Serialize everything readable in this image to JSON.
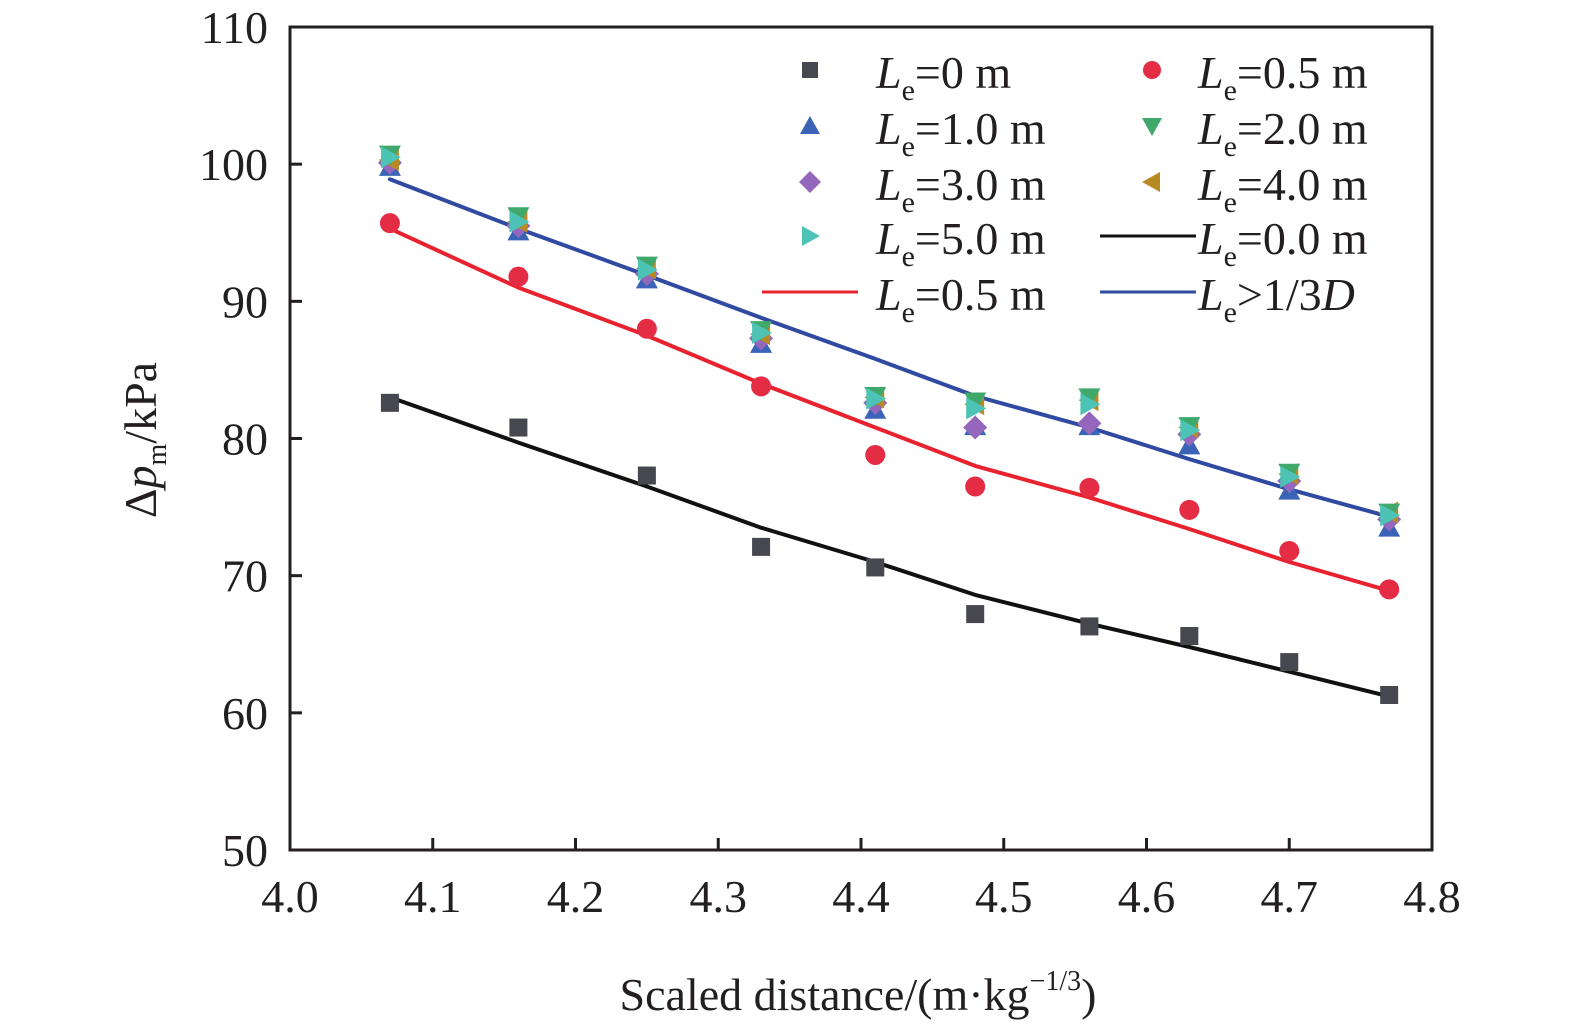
{
  "chart_data": {
    "type": "scatter",
    "title": "",
    "xlabel": "Scaled distance/(m·kg",
    "xlabel_sup": "−1/3",
    "xlabel_close": ")",
    "ylabel_delta": "Δ",
    "ylabel_var": "p",
    "ylabel_sub": "m",
    "ylabel_unit": "/kPa",
    "xlim": [
      4.0,
      4.8
    ],
    "ylim": [
      50,
      110
    ],
    "xticks": [
      "4.0",
      "4.1",
      "4.2",
      "4.3",
      "4.4",
      "4.5",
      "4.6",
      "4.7",
      "4.8"
    ],
    "yticks": [
      "50",
      "60",
      "70",
      "80",
      "90",
      "100",
      "110"
    ],
    "grid": false,
    "legend_position": "top-right",
    "x": [
      4.07,
      4.16,
      4.25,
      4.33,
      4.41,
      4.48,
      4.56,
      4.63,
      4.7,
      4.77
    ],
    "series": [
      {
        "name": "Le=0 m",
        "label_var": "L",
        "label_sub": "e",
        "label_rest": "=0 m",
        "kind": "marker",
        "marker": "square",
        "color": "#46474f",
        "values": [
          82.6,
          80.8,
          77.3,
          72.1,
          70.6,
          67.2,
          66.3,
          65.6,
          63.7,
          61.3
        ]
      },
      {
        "name": "Le=0.5 m",
        "label_var": "L",
        "label_sub": "e",
        "label_rest": "=0.5 m",
        "kind": "marker",
        "marker": "circle",
        "color": "#e42c45",
        "values": [
          95.7,
          91.8,
          88.0,
          83.8,
          78.8,
          76.5,
          76.4,
          74.8,
          71.8,
          69.0
        ]
      },
      {
        "name": "Le=1.0 m",
        "label_var": "L",
        "label_sub": "e",
        "label_rest": "=1.0 m",
        "kind": "marker",
        "marker": "triangle-up",
        "color": "#3b64b8",
        "values": [
          99.8,
          95.1,
          91.6,
          86.9,
          82.1,
          80.9,
          80.9,
          79.5,
          76.2,
          73.5
        ]
      },
      {
        "name": "Le=2.0 m",
        "label_var": "L",
        "label_sub": "e",
        "label_rest": "=2.0 m",
        "kind": "marker",
        "marker": "triangle-down",
        "color": "#3fa86a",
        "values": [
          100.7,
          96.2,
          92.6,
          87.9,
          83.1,
          82.7,
          83.0,
          80.9,
          77.5,
          74.6
        ]
      },
      {
        "name": "Le=3.0 m",
        "label_var": "L",
        "label_sub": "e",
        "label_rest": "=3.0 m",
        "kind": "marker",
        "marker": "diamond",
        "color": "#9467bd",
        "values": [
          100.1,
          95.5,
          92.0,
          87.3,
          82.6,
          80.8,
          81.1,
          80.3,
          76.9,
          74.1
        ]
      },
      {
        "name": "Le=4.0 m",
        "label_var": "L",
        "label_sub": "e",
        "label_rest": "=4.0 m",
        "kind": "marker",
        "marker": "triangle-left",
        "color": "#b88a24",
        "values": [
          100.3,
          95.8,
          92.4,
          87.6,
          83.0,
          82.5,
          82.8,
          80.8,
          77.4,
          74.6
        ]
      },
      {
        "name": "Le=5.0 m",
        "label_var": "L",
        "label_sub": "e",
        "label_rest": "=5.0 m",
        "kind": "marker",
        "marker": "triangle-right",
        "color": "#4dc3b5",
        "values": [
          100.5,
          95.8,
          92.3,
          87.7,
          82.9,
          82.2,
          82.5,
          80.6,
          77.2,
          74.4
        ]
      },
      {
        "name": "Le=0.0 m (fit)",
        "label_var": "L",
        "label_sub": "e",
        "label_rest": "=0.0 m",
        "kind": "line",
        "color": "#111111",
        "values": [
          83.0,
          79.7,
          76.5,
          73.5,
          71.0,
          68.6,
          66.5,
          64.8,
          63.0,
          61.2
        ]
      },
      {
        "name": "Le=0.5 m (fit)",
        "label_var": "L",
        "label_sub": "e",
        "label_rest": "=0.5 m",
        "kind": "line",
        "color": "#e8232f",
        "values": [
          95.3,
          91.0,
          87.5,
          84.0,
          80.8,
          78.0,
          75.7,
          73.4,
          71.0,
          68.9
        ]
      },
      {
        "name": "Le>1/3D (fit)",
        "label_var": "L",
        "label_sub": "e",
        "label_rest": ">1/3",
        "label_tail": "D",
        "kind": "line",
        "color": "#2f4aa0",
        "values": [
          98.9,
          95.3,
          91.9,
          88.8,
          85.8,
          83.1,
          80.8,
          78.5,
          76.3,
          74.3
        ]
      }
    ]
  }
}
